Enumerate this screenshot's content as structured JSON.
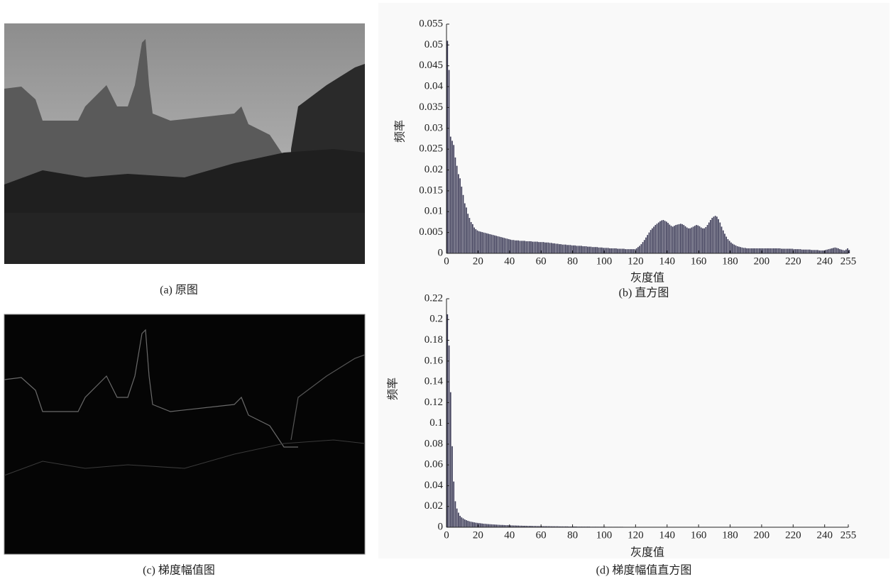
{
  "images": [
    {
      "caption": "(a) 原图"
    },
    {
      "caption": "(c) 梯度幅值图"
    }
  ],
  "chart_data": [
    {
      "type": "bar",
      "caption": "(b) 直方图",
      "xlabel": "灰度值",
      "ylabel": "频率",
      "color": "#3b3a56",
      "xlim": [
        0,
        255
      ],
      "xticks": [
        0,
        20,
        40,
        60,
        80,
        100,
        120,
        140,
        160,
        180,
        200,
        220,
        240,
        255
      ],
      "ylim": [
        0,
        0.055
      ],
      "yticks": [
        0,
        0.005,
        0.01,
        0.015,
        0.02,
        0.025,
        0.03,
        0.035,
        0.04,
        0.045,
        0.05,
        0.055
      ],
      "values": [
        0.051,
        0.044,
        0.028,
        0.027,
        0.026,
        0.023,
        0.021,
        0.019,
        0.018,
        0.016,
        0.014,
        0.012,
        0.011,
        0.0095,
        0.0085,
        0.0075,
        0.007,
        0.0062,
        0.0058,
        0.0055,
        0.0053,
        0.0052,
        0.0051,
        0.005,
        0.0049,
        0.0048,
        0.0047,
        0.0046,
        0.0045,
        0.0044,
        0.0043,
        0.0042,
        0.0041,
        0.004,
        0.0039,
        0.0038,
        0.0037,
        0.0036,
        0.0035,
        0.0034,
        0.0033,
        0.0032,
        0.0032,
        0.0031,
        0.0031,
        0.0031,
        0.003,
        0.003,
        0.003,
        0.003,
        0.0029,
        0.0029,
        0.0029,
        0.0029,
        0.0028,
        0.0028,
        0.0028,
        0.0028,
        0.0027,
        0.0027,
        0.0027,
        0.0027,
        0.0026,
        0.0026,
        0.0026,
        0.0025,
        0.0025,
        0.0024,
        0.0024,
        0.0023,
        0.0023,
        0.0022,
        0.0022,
        0.0021,
        0.0021,
        0.0021,
        0.002,
        0.002,
        0.002,
        0.0019,
        0.0019,
        0.0019,
        0.0018,
        0.0018,
        0.0018,
        0.0018,
        0.0017,
        0.0017,
        0.0017,
        0.0016,
        0.0016,
        0.0016,
        0.0015,
        0.0015,
        0.0015,
        0.0015,
        0.0014,
        0.0014,
        0.0014,
        0.0013,
        0.0013,
        0.0013,
        0.0013,
        0.0012,
        0.0012,
        0.0012,
        0.0012,
        0.0012,
        0.0011,
        0.0011,
        0.0011,
        0.0011,
        0.0011,
        0.001,
        0.001,
        0.001,
        0.001,
        0.001,
        0.001,
        0.001,
        0.0012,
        0.0015,
        0.0018,
        0.0022,
        0.0027,
        0.0032,
        0.0038,
        0.0044,
        0.005,
        0.0056,
        0.006,
        0.0064,
        0.0068,
        0.0071,
        0.0074,
        0.0077,
        0.0079,
        0.008,
        0.0078,
        0.0076,
        0.0073,
        0.0069,
        0.0066,
        0.0064,
        0.0066,
        0.0068,
        0.0069,
        0.007,
        0.0071,
        0.007,
        0.0068,
        0.0065,
        0.0062,
        0.006,
        0.006,
        0.0062,
        0.0064,
        0.0066,
        0.0068,
        0.0067,
        0.0065,
        0.0062,
        0.006,
        0.006,
        0.0063,
        0.0068,
        0.0074,
        0.008,
        0.0085,
        0.0088,
        0.009,
        0.0088,
        0.0082,
        0.0074,
        0.0064,
        0.0055,
        0.0047,
        0.004,
        0.0034,
        0.003,
        0.0026,
        0.0023,
        0.0021,
        0.0019,
        0.0017,
        0.0016,
        0.0015,
        0.0014,
        0.0013,
        0.0013,
        0.0012,
        0.0012,
        0.0012,
        0.0012,
        0.0012,
        0.0012,
        0.0012,
        0.0012,
        0.0012,
        0.0012,
        0.0012,
        0.0012,
        0.0012,
        0.0012,
        0.0012,
        0.0012,
        0.0012,
        0.0012,
        0.0012,
        0.0012,
        0.0012,
        0.0012,
        0.0011,
        0.0011,
        0.0011,
        0.0011,
        0.0011,
        0.0011,
        0.0011,
        0.0011,
        0.001,
        0.001,
        0.001,
        0.001,
        0.001,
        0.0009,
        0.0009,
        0.0009,
        0.0009,
        0.0009,
        0.0009,
        0.0008,
        0.0008,
        0.0008,
        0.0008,
        0.0008,
        0.0007,
        0.0007,
        0.0007,
        0.0007,
        0.0008,
        0.0009,
        0.001,
        0.0011,
        0.0012,
        0.0013,
        0.0014,
        0.0013,
        0.0012,
        0.001,
        0.0009,
        0.0008,
        0.0007,
        0.0009,
        0.0012,
        0.0008
      ]
    },
    {
      "type": "bar",
      "caption": "(d) 梯度幅值直方图",
      "xlabel": "灰度值",
      "ylabel": "频率",
      "color": "#3b3a56",
      "xlim": [
        0,
        255
      ],
      "xticks": [
        0,
        20,
        40,
        60,
        80,
        100,
        120,
        140,
        160,
        180,
        200,
        220,
        240,
        255
      ],
      "ylim": [
        0,
        0.22
      ],
      "yticks": [
        0,
        0.02,
        0.04,
        0.06,
        0.08,
        0.1,
        0.12,
        0.14,
        0.16,
        0.18,
        0.2,
        0.22
      ],
      "values": [
        0.205,
        0.175,
        0.13,
        0.078,
        0.044,
        0.025,
        0.018,
        0.014,
        0.011,
        0.0095,
        0.0085,
        0.0075,
        0.0068,
        0.0062,
        0.0057,
        0.0053,
        0.005,
        0.0047,
        0.0044,
        0.0042,
        0.004,
        0.0038,
        0.0036,
        0.0034,
        0.0033,
        0.0031,
        0.003,
        0.0029,
        0.0028,
        0.0027,
        0.0026,
        0.0025,
        0.0024,
        0.0023,
        0.0022,
        0.0022,
        0.0021,
        0.002,
        0.002,
        0.0019,
        0.0018,
        0.0018,
        0.0017,
        0.0017,
        0.0016,
        0.0016,
        0.0015,
        0.0015,
        0.0014,
        0.0014,
        0.0014,
        0.0013,
        0.0013,
        0.0013,
        0.0012,
        0.0012,
        0.0012,
        0.0011,
        0.0011,
        0.0011,
        0.0011,
        0.001,
        0.001,
        0.001,
        0.001,
        0.001,
        0.0009,
        0.0009,
        0.0009,
        0.0009,
        0.0009,
        0.0008,
        0.0008,
        0.0008,
        0.0008,
        0.0008,
        0.0008,
        0.0007,
        0.0007,
        0.0007,
        0.0007,
        0.0007,
        0.0007,
        0.0006,
        0.0006,
        0.0006,
        0.0006,
        0.0006,
        0.0006,
        0.0006,
        0.0006,
        0.0005,
        0.0005,
        0.0005,
        0.0005,
        0.0005,
        0.0005,
        0.0005,
        0.0005,
        0.0005,
        0.0005,
        0.0004,
        0.0004,
        0.0004,
        0.0004,
        0.0004,
        0.0004,
        0.0004,
        0.0004,
        0.0004,
        0.0004,
        0.0004,
        0.0003,
        0.0003,
        0.0003,
        0.0003,
        0.0003,
        0.0003,
        0.0003,
        0.0003,
        0.0003,
        0.0003,
        0.0003,
        0.0002,
        0.0002,
        0.0002,
        0.0002,
        0.0002,
        0.0002,
        0.0002,
        0.0002,
        0.0002,
        0.0002,
        0.0002,
        0.0002,
        0.0002,
        0.0002,
        0.0002,
        0.0002,
        0.0002,
        0.0002,
        0.0002,
        0.0001,
        0.0001,
        0.0001,
        0.0001,
        0.0001,
        0.0001,
        0.0001,
        0.0001,
        0.0001,
        0.0001,
        0.0001,
        0.0001,
        0.0001,
        0.0001,
        0.0001,
        0.0001,
        0.0001,
        0.0001,
        0.0001,
        0.0001,
        0.0001,
        0.0001,
        0.0001,
        0.0001,
        0.0001,
        0.0001,
        0.0001,
        0.0001,
        0.0001,
        0.0001,
        0.0001,
        0.0001,
        0.0001,
        0.0001,
        0.0001,
        0.0001,
        0.0001,
        0.0001,
        0.0001,
        0.0001,
        0.0001,
        0.0001,
        0.0001,
        0.0001,
        0.0001,
        0.0001,
        0.0001,
        0.0001,
        0.0001,
        0.0001,
        0.0001,
        0.0001,
        0.0001,
        0.0001,
        0.0001,
        0.0001,
        0.0001,
        0.0001,
        0.0001,
        0.0001,
        0.0001,
        0.0001,
        0.0001,
        0.0001,
        0.0001,
        0.0001,
        0.0001,
        0.0001,
        0.0001,
        0.0001,
        0.0001,
        0.0001,
        0.0001,
        0.0001,
        0.0001,
        0.0001,
        0.0001,
        0.0001,
        0.0001,
        0.0001,
        0.0001,
        0.0001,
        0.0001,
        0.0001,
        0.0001,
        0.0001,
        0.0001,
        0.0001,
        0.0001,
        0.0001,
        0.0001,
        0.0001,
        0.0001,
        0.0001,
        0.0001,
        0.0001,
        0.0001,
        0.0001,
        0.0001,
        0.0001,
        0.0001,
        0.0001,
        0.0001,
        0.0001,
        0.0001,
        0.0001,
        0.0001,
        0.0001,
        0.0001,
        0.0001,
        0.0001,
        0.0001,
        0.0001,
        0.0001
      ]
    }
  ]
}
